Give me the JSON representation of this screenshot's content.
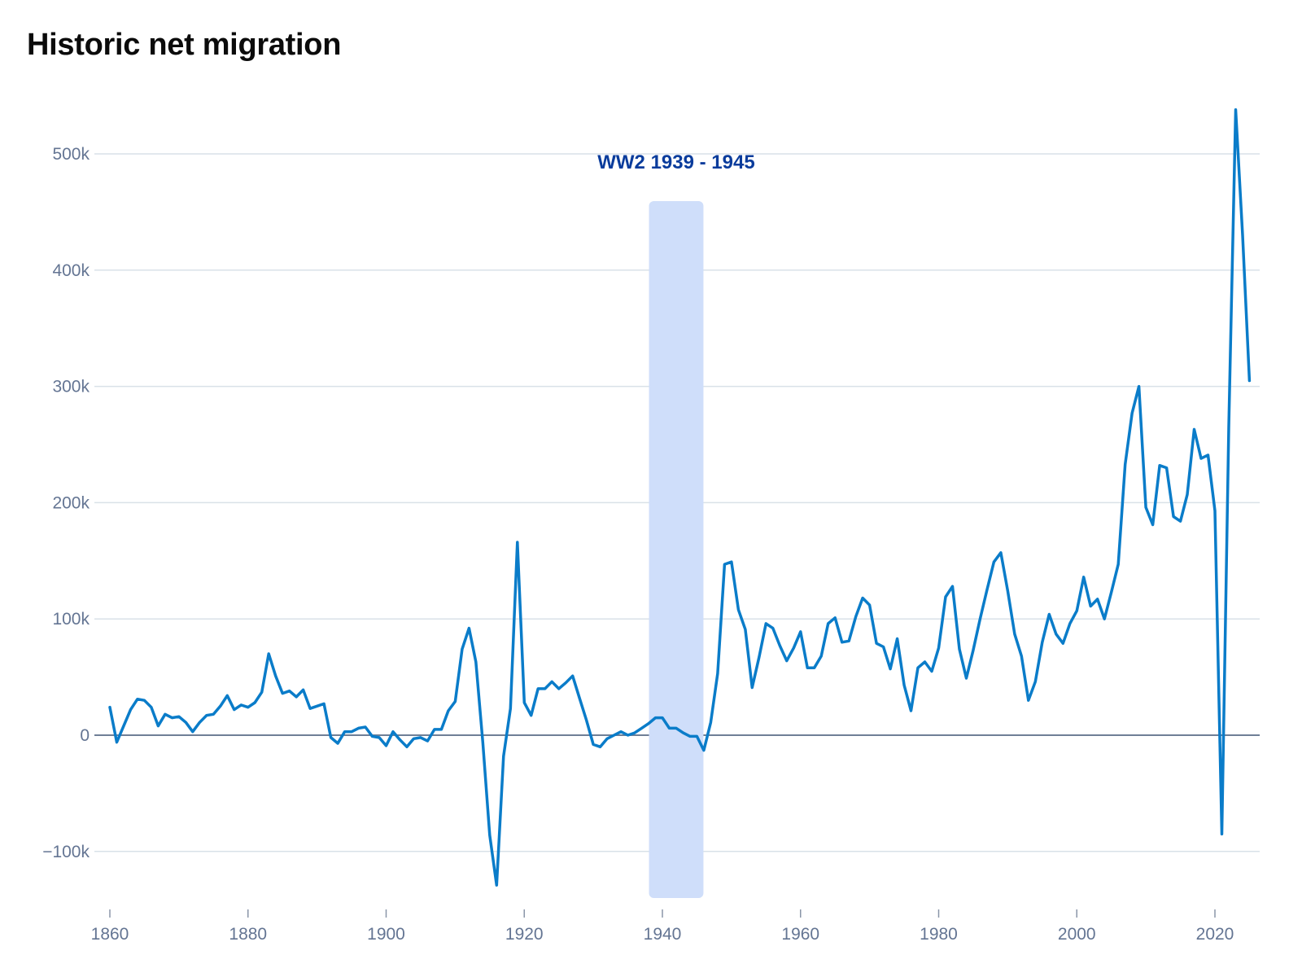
{
  "chart_data": {
    "type": "line",
    "title": "Historic net migration",
    "xlabel": "",
    "ylabel": "",
    "xlim": [
      1860,
      2025
    ],
    "ylim": [
      -140000,
      540000
    ],
    "x_ticks": [
      1860,
      1880,
      1900,
      1920,
      1940,
      1960,
      1980,
      2000,
      2020
    ],
    "x_tick_labels": [
      "1860",
      "1880",
      "1900",
      "1920",
      "1940",
      "1960",
      "1980",
      "2000",
      "2020"
    ],
    "y_ticks": [
      -100000,
      0,
      100000,
      200000,
      300000,
      400000,
      500000
    ],
    "y_tick_labels": [
      "−100k",
      "0",
      "100k",
      "200k",
      "300k",
      "400k",
      "500k"
    ],
    "grid": true,
    "legend": "none",
    "annotations": [
      {
        "type": "band",
        "x_start": 1939,
        "x_end": 1945,
        "label": "WW2 1939 - 1945",
        "color": "#cfdefa",
        "label_color": "#0a3c9c"
      }
    ],
    "series": [
      {
        "color": "#0a7cc9",
        "points": [
          [
            1860,
            24000
          ],
          [
            1861,
            -6000
          ],
          [
            1862,
            8000
          ],
          [
            1863,
            22000
          ],
          [
            1864,
            31000
          ],
          [
            1865,
            30000
          ],
          [
            1866,
            24000
          ],
          [
            1867,
            8000
          ],
          [
            1868,
            18000
          ],
          [
            1869,
            15000
          ],
          [
            1870,
            16000
          ],
          [
            1871,
            11000
          ],
          [
            1872,
            3000
          ],
          [
            1873,
            11000
          ],
          [
            1874,
            17000
          ],
          [
            1875,
            18000
          ],
          [
            1876,
            25000
          ],
          [
            1877,
            34000
          ],
          [
            1878,
            22000
          ],
          [
            1879,
            26000
          ],
          [
            1880,
            24000
          ],
          [
            1881,
            28000
          ],
          [
            1882,
            37000
          ],
          [
            1883,
            70000
          ],
          [
            1884,
            51000
          ],
          [
            1885,
            36000
          ],
          [
            1886,
            38000
          ],
          [
            1887,
            33000
          ],
          [
            1888,
            39000
          ],
          [
            1889,
            23000
          ],
          [
            1890,
            25000
          ],
          [
            1891,
            27000
          ],
          [
            1892,
            -2000
          ],
          [
            1893,
            -7000
          ],
          [
            1894,
            3000
          ],
          [
            1895,
            3000
          ],
          [
            1896,
            6000
          ],
          [
            1897,
            7000
          ],
          [
            1898,
            -1000
          ],
          [
            1899,
            -2000
          ],
          [
            1900,
            -9000
          ],
          [
            1901,
            3000
          ],
          [
            1902,
            -4000
          ],
          [
            1903,
            -10000
          ],
          [
            1904,
            -3000
          ],
          [
            1905,
            -2000
          ],
          [
            1906,
            -5000
          ],
          [
            1907,
            5000
          ],
          [
            1908,
            5000
          ],
          [
            1909,
            21000
          ],
          [
            1910,
            29000
          ],
          [
            1911,
            74000
          ],
          [
            1912,
            92000
          ],
          [
            1913,
            63000
          ],
          [
            1914,
            -6000
          ],
          [
            1915,
            -86000
          ],
          [
            1916,
            -129000
          ],
          [
            1917,
            -18000
          ],
          [
            1918,
            23000
          ],
          [
            1919,
            166000
          ],
          [
            1920,
            28000
          ],
          [
            1921,
            17000
          ],
          [
            1922,
            40000
          ],
          [
            1923,
            40000
          ],
          [
            1924,
            46000
          ],
          [
            1925,
            40000
          ],
          [
            1926,
            45000
          ],
          [
            1927,
            51000
          ],
          [
            1928,
            32000
          ],
          [
            1929,
            13000
          ],
          [
            1930,
            -8000
          ],
          [
            1931,
            -10000
          ],
          [
            1932,
            -3000
          ],
          [
            1933,
            0
          ],
          [
            1934,
            3000
          ],
          [
            1935,
            0
          ],
          [
            1936,
            2000
          ],
          [
            1937,
            6000
          ],
          [
            1938,
            10000
          ],
          [
            1939,
            15000
          ],
          [
            1940,
            15000
          ],
          [
            1941,
            6000
          ],
          [
            1942,
            6000
          ],
          [
            1943,
            2000
          ],
          [
            1944,
            -1000
          ],
          [
            1945,
            -1000
          ],
          [
            1946,
            -13000
          ],
          [
            1947,
            11000
          ],
          [
            1948,
            53000
          ],
          [
            1949,
            147000
          ],
          [
            1950,
            149000
          ],
          [
            1951,
            108000
          ],
          [
            1952,
            91000
          ],
          [
            1953,
            41000
          ],
          [
            1954,
            67000
          ],
          [
            1955,
            96000
          ],
          [
            1956,
            92000
          ],
          [
            1957,
            77000
          ],
          [
            1958,
            64000
          ],
          [
            1959,
            75000
          ],
          [
            1960,
            89000
          ],
          [
            1961,
            58000
          ],
          [
            1962,
            58000
          ],
          [
            1963,
            68000
          ],
          [
            1964,
            96000
          ],
          [
            1965,
            101000
          ],
          [
            1966,
            80000
          ],
          [
            1967,
            81000
          ],
          [
            1968,
            102000
          ],
          [
            1969,
            118000
          ],
          [
            1970,
            112000
          ],
          [
            1971,
            79000
          ],
          [
            1972,
            76000
          ],
          [
            1973,
            57000
          ],
          [
            1974,
            83000
          ],
          [
            1975,
            43000
          ],
          [
            1976,
            21000
          ],
          [
            1977,
            58000
          ],
          [
            1978,
            63000
          ],
          [
            1979,
            55000
          ],
          [
            1980,
            75000
          ],
          [
            1981,
            119000
          ],
          [
            1982,
            128000
          ],
          [
            1983,
            74000
          ],
          [
            1984,
            49000
          ],
          [
            1985,
            73000
          ],
          [
            1986,
            100000
          ],
          [
            1987,
            125000
          ],
          [
            1988,
            149000
          ],
          [
            1989,
            157000
          ],
          [
            1990,
            124000
          ],
          [
            1991,
            87000
          ],
          [
            1992,
            68000
          ],
          [
            1993,
            30000
          ],
          [
            1994,
            46000
          ],
          [
            1995,
            80000
          ],
          [
            1996,
            104000
          ],
          [
            1997,
            87000
          ],
          [
            1998,
            79000
          ],
          [
            1999,
            96000
          ],
          [
            2000,
            107000
          ],
          [
            2001,
            136000
          ],
          [
            2002,
            111000
          ],
          [
            2003,
            117000
          ],
          [
            2004,
            100000
          ],
          [
            2005,
            123000
          ],
          [
            2006,
            147000
          ],
          [
            2007,
            233000
          ],
          [
            2008,
            277000
          ],
          [
            2009,
            300000
          ],
          [
            2010,
            196000
          ],
          [
            2011,
            181000
          ],
          [
            2012,
            232000
          ],
          [
            2013,
            230000
          ],
          [
            2014,
            188000
          ],
          [
            2015,
            184000
          ],
          [
            2016,
            207000
          ],
          [
            2017,
            263000
          ],
          [
            2018,
            238000
          ],
          [
            2019,
            241000
          ],
          [
            2020,
            193000
          ],
          [
            2021,
            -85000
          ],
          [
            2022,
            265000
          ],
          [
            2023,
            538000
          ],
          [
            2024,
            430000
          ],
          [
            2025,
            305000
          ]
        ]
      }
    ]
  }
}
